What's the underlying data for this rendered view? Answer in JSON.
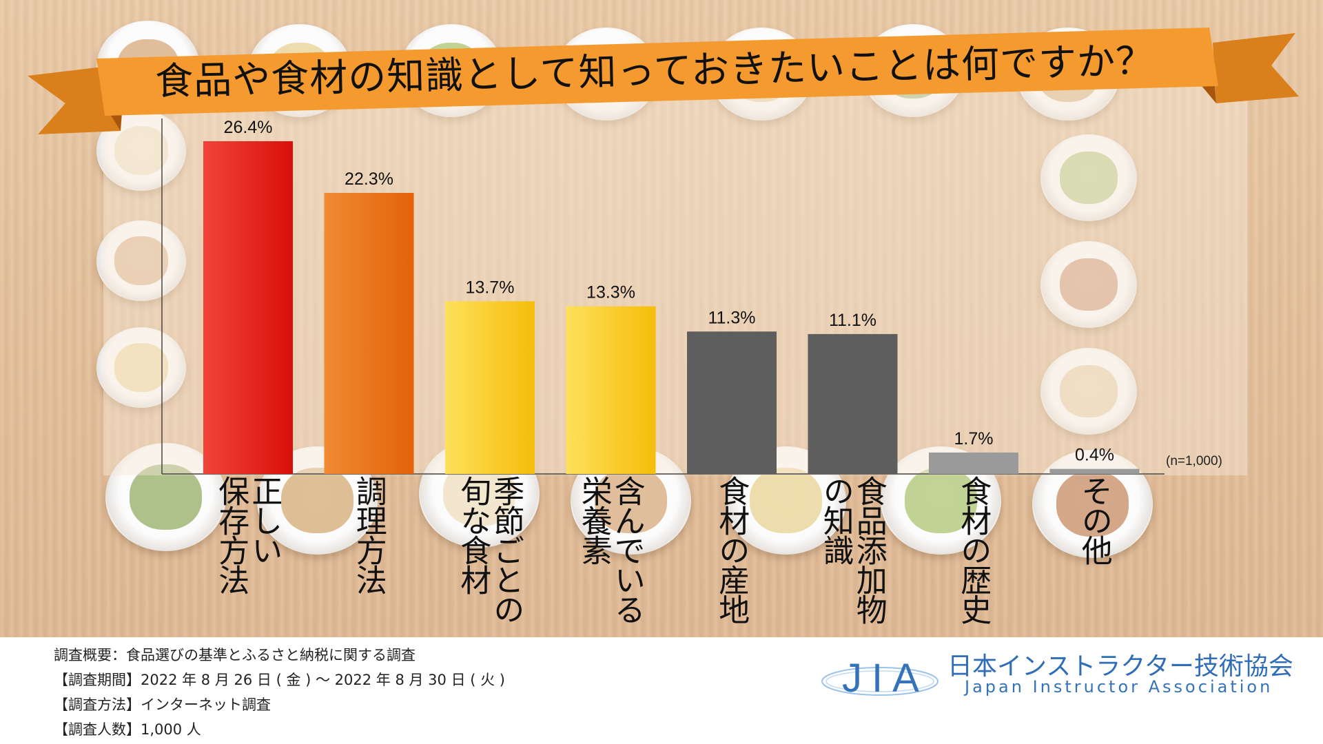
{
  "title": "食品や食材の知識として知っておきたいことは何ですか？",
  "colors": {
    "ribbon": "#f49a2e",
    "ribbon_dark": "#c86e10",
    "red": "#e3170f",
    "orange": "#ea6a0c",
    "yellow": "#f8c516",
    "gray_dark": "#5e5e5e",
    "gray_light": "#9a9a9a",
    "logo_blue": "#3573b9"
  },
  "chart_data": {
    "type": "bar",
    "categories": [
      "正しい保存方法",
      "調理方法",
      "季節ごとの旬な食材",
      "含んでいる栄養素",
      "食材の産地",
      "食品添加物の知識",
      "食材の歴史",
      "その他"
    ],
    "values": [
      26.4,
      22.3,
      13.7,
      13.3,
      11.3,
      11.1,
      1.7,
      0.4
    ],
    "value_labels": [
      "26.4%",
      "22.3%",
      "13.7%",
      "13.3%",
      "11.3%",
      "11.1%",
      "1.7%",
      "0.4%"
    ],
    "label_columns": [
      [
        "正しい",
        "保存方法"
      ],
      [
        "調理方法"
      ],
      [
        "季節ごとの",
        "旬な食材"
      ],
      [
        "含んでいる",
        "栄養素"
      ],
      [
        "食材の産地"
      ],
      [
        "食品添加物",
        "の知識"
      ],
      [
        "食材の歴史"
      ],
      [
        "その他"
      ]
    ],
    "bar_styles": [
      "red",
      "orange",
      "yellow",
      "yellow",
      "gray_dark",
      "gray_dark",
      "gray_light",
      "gray_light"
    ],
    "ylim": [
      0,
      27
    ],
    "grid": false,
    "legend": "none",
    "sample_note": "(n=1,000)"
  },
  "footer": {
    "lines": [
      "調査概要：食品選びの基準とふるさと納税に関する調査",
      "【調査期間】2022 年 8 月 26 日 ( 金 ) ～ 2022 年 8 月 30 日 ( 火 )",
      "【調査方法】インターネット調査",
      "【調査人数】1,000 人"
    ]
  },
  "logo": {
    "abbr": "JIA",
    "name": "日本インストラクター技術協会",
    "english": "Japan Instructor Association"
  }
}
